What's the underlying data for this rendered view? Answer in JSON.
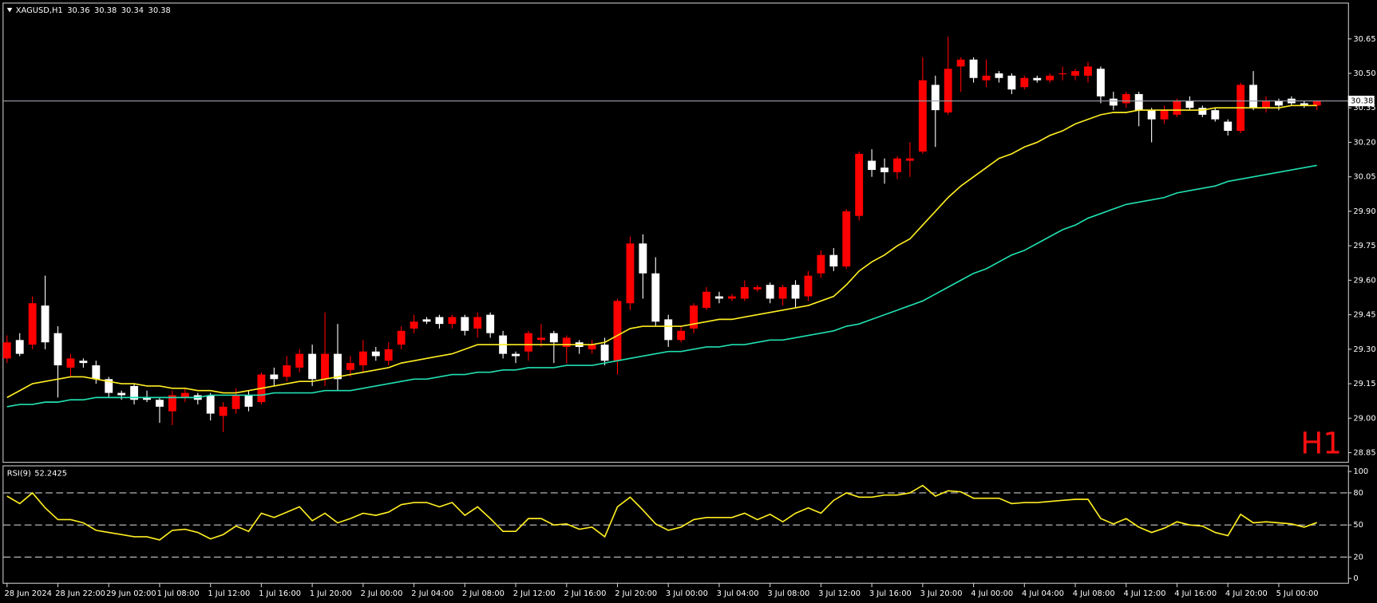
{
  "chart_data": {
    "type": "candlestick",
    "title": "XAGUSD,H1",
    "timeframe_label": "H1",
    "categories": [
      "28 Jun 2024",
      null,
      null,
      null,
      "28 Jun 22:00",
      null,
      null,
      null,
      "29 Jun 02:00",
      null,
      null,
      null,
      "1 Jul 08:00",
      null,
      null,
      null,
      "1 Jul 12:00",
      null,
      null,
      null,
      "1 Jul 16:00",
      null,
      null,
      null,
      "1 Jul 20:00",
      null,
      null,
      null,
      "2 Jul 00:00",
      null,
      null,
      null,
      "2 Jul 04:00",
      null,
      null,
      null,
      "2 Jul 08:00",
      null,
      null,
      null,
      "2 Jul 12:00",
      null,
      null,
      null,
      "2 Jul 16:00",
      null,
      null,
      null,
      "2 Jul 20:00",
      null,
      null,
      null,
      "3 Jul 00:00",
      null,
      null,
      null,
      "3 Jul 04:00",
      null,
      null,
      null,
      "3 Jul 08:00",
      null,
      null,
      null,
      "3 Jul 12:00",
      null,
      null,
      null,
      "3 Jul 16:00",
      null,
      null,
      null,
      "3 Jul 20:00",
      null,
      null,
      null,
      "4 Jul 00:00",
      null,
      null,
      null,
      "4 Jul 04:00",
      null,
      null,
      null,
      "4 Jul 08:00",
      null,
      null,
      null,
      "4 Jul 12:00",
      null,
      null,
      null,
      "4 Jul 16:00",
      null,
      null,
      null,
      "4 Jul 20:00",
      null,
      null,
      null,
      "5 Jul 00:00",
      null,
      null,
      null
    ],
    "open": [
      29.26,
      29.34,
      29.32,
      29.49,
      29.37,
      29.22,
      29.25,
      29.23,
      29.17,
      29.11,
      29.14,
      29.09,
      29.08,
      29.03,
      29.09,
      29.1,
      29.1,
      29.01,
      29.04,
      29.1,
      29.07,
      29.19,
      29.18,
      29.22,
      29.28,
      29.17,
      29.28,
      29.21,
      29.23,
      29.29,
      29.25,
      29.32,
      29.39,
      29.43,
      29.44,
      29.41,
      29.44,
      29.39,
      29.45,
      29.36,
      29.28,
      29.29,
      29.34,
      29.37,
      29.31,
      29.33,
      29.3,
      29.32,
      29.25,
      29.5,
      29.76,
      29.63,
      29.43,
      29.34,
      29.39,
      29.48,
      29.53,
      29.52,
      29.52,
      29.56,
      29.58,
      29.52,
      29.58,
      29.53,
      29.63,
      29.71,
      29.66,
      29.88,
      30.12,
      30.09,
      30.07,
      30.12,
      30.16,
      30.45,
      30.33,
      30.53,
      30.56,
      30.47,
      30.5,
      30.49,
      30.44,
      30.48,
      30.47,
      30.5,
      30.49,
      30.49,
      30.52,
      30.39,
      30.37,
      30.41,
      30.34,
      30.3,
      30.32,
      30.38,
      30.35,
      30.34,
      30.29,
      30.25,
      30.45,
      30.35,
      30.38,
      30.39,
      30.37,
      30.36
    ],
    "high": [
      29.36,
      29.37,
      29.53,
      29.62,
      29.4,
      29.28,
      29.26,
      29.25,
      29.18,
      29.12,
      29.15,
      29.12,
      29.09,
      29.12,
      29.13,
      29.11,
      29.11,
      29.07,
      29.13,
      29.12,
      29.2,
      29.22,
      29.27,
      29.3,
      29.32,
      29.46,
      29.41,
      29.27,
      29.34,
      29.31,
      29.33,
      29.4,
      29.45,
      29.44,
      29.45,
      29.45,
      29.45,
      29.46,
      29.46,
      29.38,
      29.29,
      29.38,
      29.41,
      29.38,
      29.36,
      29.34,
      29.34,
      29.35,
      29.52,
      29.79,
      29.8,
      29.7,
      29.45,
      29.4,
      29.5,
      29.57,
      29.55,
      29.54,
      29.6,
      29.58,
      29.59,
      29.58,
      29.6,
      29.64,
      29.73,
      29.74,
      29.91,
      30.16,
      30.17,
      30.13,
      30.14,
      30.2,
      30.57,
      30.49,
      30.66,
      30.57,
      30.57,
      30.56,
      30.51,
      30.5,
      30.49,
      30.49,
      30.5,
      30.53,
      30.52,
      30.55,
      30.53,
      30.42,
      30.42,
      30.42,
      30.35,
      30.36,
      30.39,
      30.4,
      30.36,
      30.35,
      30.3,
      30.46,
      30.51,
      30.4,
      30.39,
      30.4,
      30.38,
      30.38
    ],
    "low": [
      29.24,
      29.27,
      29.3,
      29.3,
      29.09,
      29.18,
      29.22,
      29.15,
      29.09,
      29.08,
      29.06,
      29.07,
      28.98,
      28.97,
      29.07,
      29.06,
      28.99,
      28.94,
      29.02,
      29.03,
      29.06,
      29.14,
      29.16,
      29.2,
      29.14,
      29.14,
      29.12,
      29.18,
      29.2,
      29.25,
      29.23,
      29.3,
      29.37,
      29.41,
      29.39,
      29.39,
      29.36,
      29.35,
      29.35,
      29.26,
      29.24,
      29.25,
      29.31,
      29.24,
      29.24,
      29.28,
      29.28,
      29.23,
      29.19,
      29.47,
      29.52,
      29.4,
      29.31,
      29.33,
      29.37,
      29.47,
      29.5,
      29.51,
      29.51,
      29.55,
      29.5,
      29.49,
      29.48,
      29.51,
      29.61,
      29.64,
      29.65,
      29.86,
      30.05,
      30.02,
      30.04,
      30.05,
      30.15,
      30.18,
      30.32,
      30.42,
      30.46,
      30.44,
      30.46,
      30.41,
      30.43,
      30.46,
      30.46,
      30.47,
      30.47,
      30.46,
      30.37,
      30.34,
      30.35,
      30.27,
      30.2,
      30.28,
      30.31,
      30.34,
      30.31,
      30.29,
      30.23,
      30.24,
      30.34,
      30.33,
      30.34,
      30.36,
      30.35,
      30.34
    ],
    "close": [
      29.33,
      29.28,
      29.5,
      29.33,
      29.23,
      29.26,
      29.24,
      29.17,
      29.11,
      29.1,
      29.08,
      29.08,
      29.05,
      29.1,
      29.11,
      29.08,
      29.02,
      29.05,
      29.1,
      29.05,
      29.19,
      29.17,
      29.23,
      29.28,
      29.17,
      29.28,
      29.17,
      29.24,
      29.29,
      29.27,
      29.3,
      29.38,
      29.42,
      29.42,
      29.41,
      29.44,
      29.38,
      29.44,
      29.37,
      29.28,
      29.27,
      29.37,
      29.35,
      29.33,
      29.35,
      29.31,
      29.32,
      29.25,
      29.51,
      29.76,
      29.63,
      29.42,
      29.34,
      29.38,
      29.49,
      29.55,
      29.52,
      29.53,
      29.57,
      29.57,
      29.52,
      29.57,
      29.52,
      29.62,
      29.71,
      29.66,
      29.9,
      30.15,
      30.08,
      30.07,
      30.13,
      30.13,
      30.47,
      30.34,
      30.52,
      30.56,
      30.48,
      30.49,
      30.48,
      30.43,
      30.48,
      30.47,
      30.49,
      30.5,
      30.51,
      30.53,
      30.4,
      30.36,
      30.41,
      30.34,
      30.3,
      30.34,
      30.38,
      30.35,
      30.32,
      30.3,
      30.25,
      30.45,
      30.35,
      30.38,
      30.36,
      30.37,
      30.36,
      30.38
    ],
    "up_color": "#ff0000",
    "down_color": "#ffffff",
    "overlays": [
      {
        "color": "#ffee22",
        "values": [
          29.09,
          29.12,
          29.15,
          29.16,
          29.17,
          29.18,
          29.18,
          29.17,
          29.16,
          29.15,
          29.15,
          29.14,
          29.14,
          29.13,
          29.13,
          29.12,
          29.12,
          29.11,
          29.11,
          29.12,
          29.13,
          29.14,
          29.15,
          29.16,
          29.16,
          29.17,
          29.18,
          29.19,
          29.2,
          29.21,
          29.22,
          29.24,
          29.25,
          29.26,
          29.27,
          29.28,
          29.3,
          29.32,
          29.32,
          29.32,
          29.32,
          29.32,
          29.32,
          29.32,
          29.32,
          29.32,
          29.32,
          29.33,
          29.36,
          29.39,
          29.4,
          29.4,
          29.4,
          29.4,
          29.41,
          29.42,
          29.43,
          29.43,
          29.44,
          29.45,
          29.46,
          29.47,
          29.48,
          29.49,
          29.51,
          29.53,
          29.58,
          29.64,
          29.68,
          29.71,
          29.75,
          29.78,
          29.84,
          29.9,
          29.96,
          30.01,
          30.05,
          30.09,
          30.13,
          30.15,
          30.18,
          30.2,
          30.23,
          30.25,
          30.28,
          30.3,
          30.32,
          30.33,
          30.33,
          30.34,
          30.34,
          30.34,
          30.34,
          30.34,
          30.34,
          30.35,
          30.35,
          30.35,
          30.35,
          30.35,
          30.35,
          30.36,
          30.36,
          30.36
        ]
      },
      {
        "color": "#20e0b0",
        "values": [
          29.05,
          29.06,
          29.06,
          29.07,
          29.07,
          29.08,
          29.08,
          29.09,
          29.09,
          29.09,
          29.09,
          29.09,
          29.09,
          29.09,
          29.09,
          29.09,
          29.1,
          29.1,
          29.1,
          29.1,
          29.1,
          29.11,
          29.11,
          29.11,
          29.11,
          29.12,
          29.12,
          29.12,
          29.13,
          29.14,
          29.15,
          29.16,
          29.17,
          29.17,
          29.18,
          29.19,
          29.19,
          29.2,
          29.2,
          29.21,
          29.21,
          29.22,
          29.22,
          29.22,
          29.23,
          29.23,
          29.23,
          29.24,
          29.25,
          29.26,
          29.27,
          29.28,
          29.29,
          29.29,
          29.3,
          29.31,
          29.31,
          29.32,
          29.32,
          29.33,
          29.34,
          29.34,
          29.35,
          29.36,
          29.37,
          29.38,
          29.4,
          29.41,
          29.43,
          29.45,
          29.47,
          29.49,
          29.51,
          29.54,
          29.57,
          29.6,
          29.63,
          29.65,
          29.68,
          29.71,
          29.73,
          29.76,
          29.79,
          29.82,
          29.84,
          29.87,
          29.89,
          29.91,
          29.93,
          29.94,
          29.95,
          29.96,
          29.98,
          29.99,
          30.0,
          30.01,
          30.03,
          30.04,
          30.05,
          30.06,
          30.07,
          30.08,
          30.09,
          30.1
        ]
      }
    ],
    "bid": 30.38,
    "ylim": [
      28.81,
      30.8
    ],
    "yticks": [
      30.65,
      {
        "value": 30.5,
        "label": "30.50"
      },
      30.35,
      {
        "value": 30.2,
        "label": "30.20"
      },
      30.05,
      {
        "value": 29.9,
        "label": "29.90"
      },
      29.75,
      {
        "value": 29.6,
        "label": "29.60"
      },
      29.45,
      {
        "value": 29.3,
        "label": "29.30"
      },
      29.15,
      {
        "value": 29,
        "label": "29.00"
      },
      28.85
    ],
    "rsi": {
      "label": "RSI(9)",
      "color": "#ffee22",
      "values": [
        77,
        70,
        80,
        66,
        55,
        55,
        52,
        45,
        43,
        41,
        39,
        39,
        36,
        45,
        46,
        43,
        37,
        41,
        49,
        44,
        61,
        57,
        62,
        67,
        54,
        61,
        52,
        56,
        61,
        59,
        62,
        69,
        71,
        71,
        67,
        71,
        59,
        67,
        56,
        44,
        44,
        56,
        56,
        50,
        51,
        46,
        48,
        39,
        67,
        76,
        64,
        51,
        45,
        48,
        55,
        57,
        57,
        57,
        61,
        55,
        60,
        53,
        61,
        66,
        61,
        73,
        80,
        76,
        76,
        78,
        78,
        80,
        87,
        77,
        82,
        81,
        75,
        75,
        75,
        70,
        71,
        71,
        72,
        73,
        74,
        74,
        56,
        51,
        56,
        48,
        43,
        47,
        53,
        50,
        49,
        43,
        40,
        60,
        52,
        53,
        52,
        51,
        48,
        52.2425
      ],
      "ylim": [
        0,
        100
      ],
      "yticks": [
        100,
        80,
        50,
        20,
        0
      ],
      "levels": [
        80,
        50,
        20
      ]
    }
  }
}
